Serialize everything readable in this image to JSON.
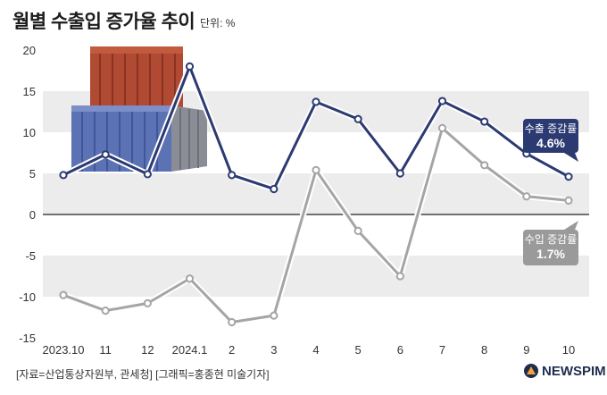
{
  "title": "월별 수출입 증가율 추이",
  "unit": "단위: %",
  "source": "[자료=산업통상자원부, 관세청] [그래픽=홍종현 미술기자]",
  "brand": "NEWSPIM",
  "colors": {
    "export": "#2c3a72",
    "import": "#a5a5a5",
    "band": "#ececec",
    "export_label_bg": "#2c3a72",
    "import_label_bg": "#9a9a9a"
  },
  "chart_data": {
    "type": "line",
    "categories": [
      "2023.10",
      "11",
      "12",
      "2024.1",
      "2",
      "3",
      "4",
      "5",
      "6",
      "7",
      "8",
      "9",
      "10"
    ],
    "series": [
      {
        "name": "수출 증감률",
        "values": [
          4.8,
          7.3,
          4.9,
          18.0,
          4.8,
          3.1,
          13.7,
          11.6,
          5.0,
          13.8,
          11.3,
          7.4,
          4.6
        ]
      },
      {
        "name": "수입 증감률",
        "values": [
          -9.8,
          -11.7,
          -10.8,
          -7.8,
          -13.1,
          -12.3,
          5.4,
          -2.0,
          -7.5,
          10.5,
          6.0,
          2.2,
          1.7
        ]
      }
    ],
    "callouts": [
      {
        "series": "수출 증감률",
        "title": "수출 증감률",
        "value": "4.6%"
      },
      {
        "series": "수입 증감률",
        "title": "수입 증감률",
        "value": "1.7%"
      }
    ],
    "ylim": [
      -15,
      20
    ],
    "yticks": [
      20,
      15,
      10,
      5,
      0,
      -5,
      -10,
      -15
    ],
    "grid": "alternating bands"
  }
}
